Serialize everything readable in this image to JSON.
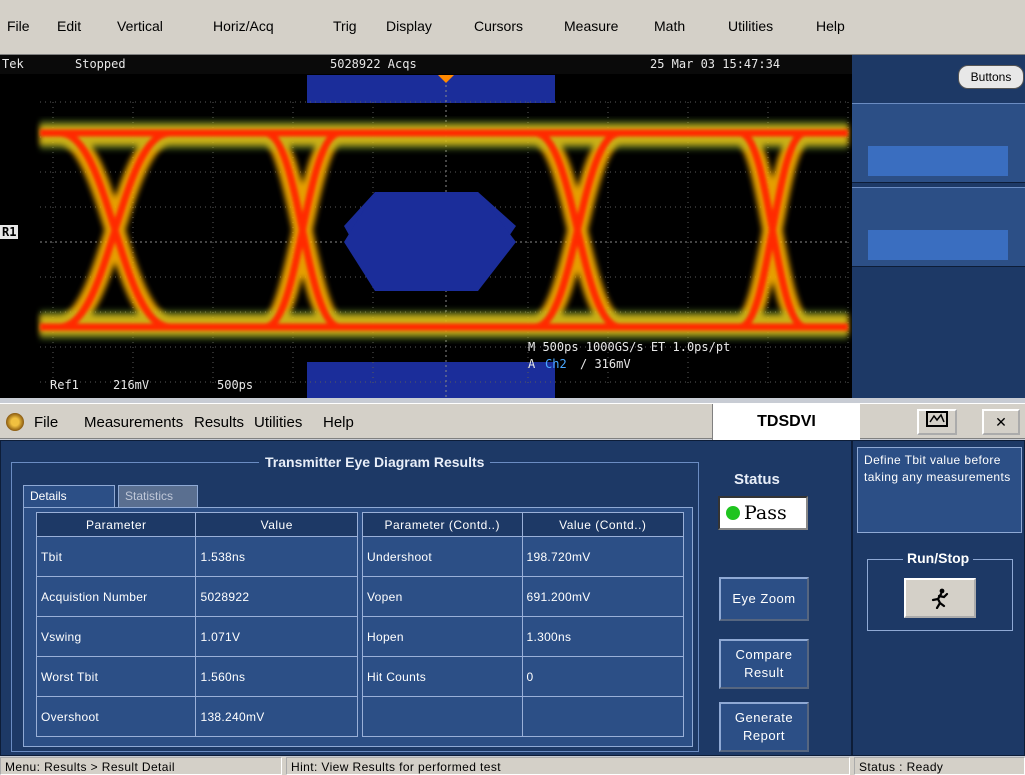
{
  "menu": [
    "File",
    "Edit",
    "Vertical",
    "Horiz/Acq",
    "Trig",
    "Display",
    "Cursors",
    "Measure",
    "Math",
    "Utilities",
    "Help"
  ],
  "scope": {
    "brand": "Tek",
    "state": "Stopped",
    "acqs": "5028922 Acqs",
    "datetime": "25 Mar 03 15:47:34",
    "ref_marker": "R1",
    "ref_label": "Ref1",
    "ref_scale": "216mV",
    "ref_time": "500ps",
    "horiz_info": "M 500ps 1000GS/s  ET 1.0ps/pt",
    "trig_prefix": "A",
    "trig_channel": "Ch2",
    "trig_level": "/ 316mV"
  },
  "right_panel": {
    "buttons_label": "Buttons"
  },
  "app_menu": [
    "File",
    "Measurements",
    "Results",
    "Utilities",
    "Help"
  ],
  "app_title": "TDSDVI",
  "results": {
    "title": "Transmitter Eye Diagram Results",
    "tabs": [
      "Details",
      "Statistics"
    ],
    "headers": [
      "Parameter",
      "Value",
      "Parameter (Contd..)",
      "Value (Contd..)"
    ],
    "left_rows": [
      {
        "param": "Tbit",
        "value": "1.538ns"
      },
      {
        "param": "Acquistion Number",
        "value": "5028922"
      },
      {
        "param": "Vswing",
        "value": "1.071V"
      },
      {
        "param": "Worst Tbit",
        "value": "1.560ns"
      },
      {
        "param": "Overshoot",
        "value": "138.240mV"
      }
    ],
    "right_rows": [
      {
        "param": "Undershoot",
        "value": "198.720mV"
      },
      {
        "param": "Vopen",
        "value": "691.200mV"
      },
      {
        "param": "Hopen",
        "value": "1.300ns"
      },
      {
        "param": "Hit Counts",
        "value": "0"
      },
      {
        "param": "",
        "value": ""
      }
    ]
  },
  "status": {
    "label": "Status",
    "value": "Pass",
    "color": "#1fc41f"
  },
  "buttons": {
    "eye_zoom": "Eye Zoom",
    "compare_result": [
      "Compare",
      "Result"
    ],
    "generate_report": [
      "Generate",
      "Report"
    ]
  },
  "help_text": "Define Tbit value before taking any measurements",
  "run_stop_label": "Run/Stop",
  "statusbar": {
    "menu_path": "Menu: Results > Result Detail",
    "hint": "Hint: View Results for performed test",
    "status": "Status : Ready"
  },
  "icons": {
    "app": "app-icon",
    "window": "window-icon",
    "close": "close-icon",
    "run": "running-man-icon"
  }
}
